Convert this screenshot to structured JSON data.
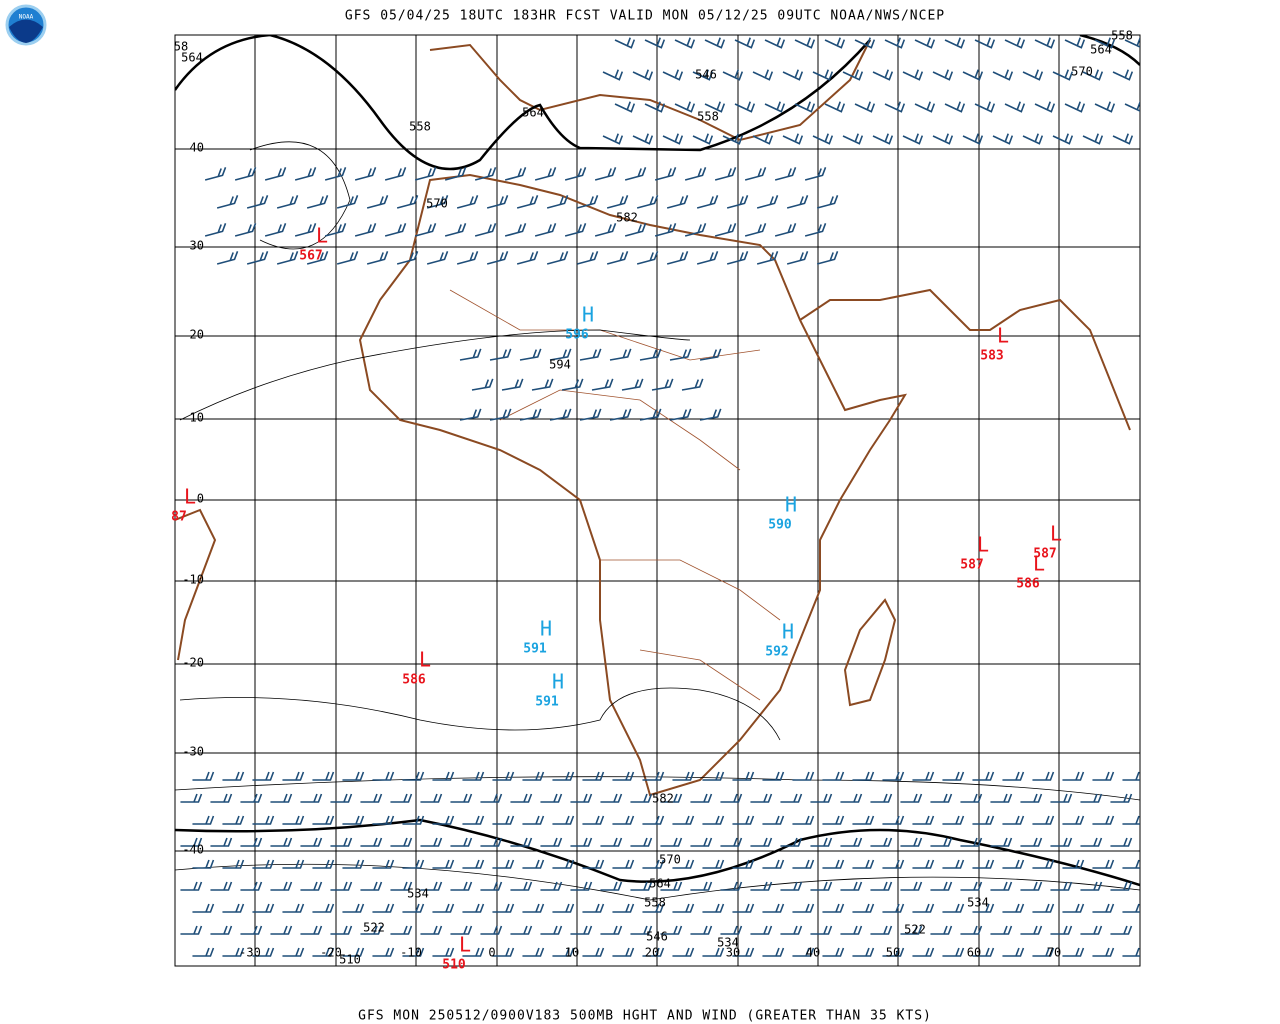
{
  "header": {
    "title": "GFS 05/04/25 18UTC 183HR FCST VALID MON 05/12/25 09UTC NOAA/NWS/NCEP"
  },
  "footer": {
    "caption": "GFS MON 250512/0900V183 500MB HGHT AND WIND (GREATER THAN 35 KTS)"
  },
  "latitude_labels": [
    40,
    30,
    20,
    10,
    0,
    -10,
    -20,
    -30,
    -40
  ],
  "longitude_labels": [
    -30,
    -20,
    -10,
    0,
    10,
    20,
    30,
    40,
    50,
    60,
    70
  ],
  "contour_labels": [
    58,
    564,
    558,
    564,
    546,
    558,
    570,
    582,
    594,
    582,
    570,
    564,
    558,
    546,
    534,
    534,
    522,
    510,
    522,
    534,
    570,
    564,
    558
  ],
  "pressure_centers": [
    {
      "kind": "L",
      "value": 567
    },
    {
      "kind": "H",
      "value": 596
    },
    {
      "kind": "L",
      "value": 583
    },
    {
      "kind": "L",
      "value": 87
    },
    {
      "kind": "H",
      "value": 590
    },
    {
      "kind": "L",
      "value": 587
    },
    {
      "kind": "L",
      "value": 587
    },
    {
      "kind": "L",
      "value": 586
    },
    {
      "kind": "H",
      "value": 591
    },
    {
      "kind": "L",
      "value": 586
    },
    {
      "kind": "H",
      "value": 592
    },
    {
      "kind": "H",
      "value": 591
    },
    {
      "kind": "L",
      "value": 510
    }
  ]
}
